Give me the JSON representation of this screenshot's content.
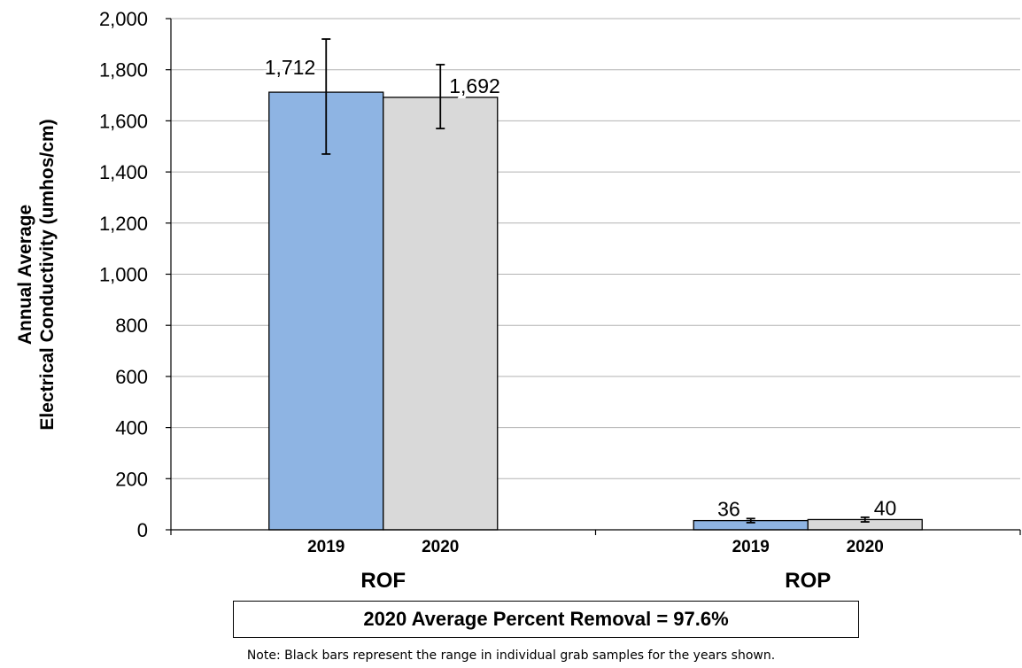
{
  "chart_data": {
    "type": "bar",
    "ylabel_line1": "Annual Average",
    "ylabel_line2": "Electrical Conductivity (umhos/cm)",
    "ylim": [
      0,
      2000
    ],
    "yticks": [
      0,
      200,
      400,
      600,
      800,
      1000,
      1200,
      1400,
      1600,
      1800,
      2000
    ],
    "ytick_labels": [
      "0",
      "200",
      "400",
      "600",
      "800",
      "1,000",
      "1,200",
      "1,400",
      "1,600",
      "1,800",
      "2,000"
    ],
    "grid": true,
    "groups": [
      {
        "label": "ROF",
        "bars": [
          {
            "year": "2019",
            "value": 1712,
            "label": "1,712",
            "range": [
              1470,
              1920
            ],
            "color": "#8EB4E3"
          },
          {
            "year": "2020",
            "value": 1692,
            "label": "1,692",
            "range": [
              1570,
              1820
            ],
            "color": "#D9D9D9"
          }
        ]
      },
      {
        "label": "ROP",
        "bars": [
          {
            "year": "2019",
            "value": 36,
            "label": "36",
            "range": [
              28,
              44
            ],
            "color": "#8EB4E3"
          },
          {
            "year": "2020",
            "value": 40,
            "label": "40",
            "range": [
              31,
              49
            ],
            "color": "#D9D9D9"
          }
        ]
      }
    ]
  },
  "summary": "2020 Average Percent Removal = 97.6%",
  "note": "Note:  Black bars represent the range in individual grab samples for the years shown."
}
